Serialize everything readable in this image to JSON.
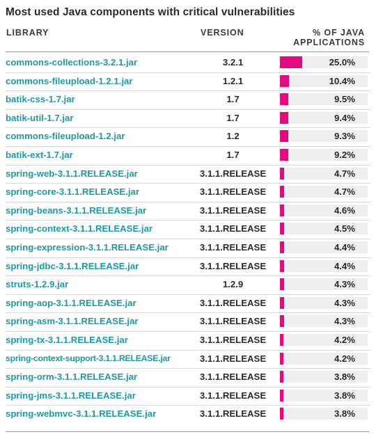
{
  "chart_data": {
    "type": "table",
    "title": "Most used Java components with critical vulnerabilities",
    "columns": [
      "LIBRARY",
      "VERSION",
      "% OF JAVA APPLICATIONS"
    ],
    "bar_color": "#e5097f",
    "library_color": "#1a9aa6",
    "rows": [
      {
        "library": "commons-collections-3.2.1.jar",
        "version": "3.2.1",
        "value": 25.0,
        "label": "25.0%"
      },
      {
        "library": "commons-fileupload-1.2.1.jar",
        "version": "1.2.1",
        "value": 10.4,
        "label": "10.4%"
      },
      {
        "library": "batik-css-1.7.jar",
        "version": "1.7",
        "value": 9.5,
        "label": "9.5%"
      },
      {
        "library": "batik-util-1.7.jar",
        "version": "1.7",
        "value": 9.4,
        "label": "9.4%"
      },
      {
        "library": "commons-fileupload-1.2.jar",
        "version": "1.2",
        "value": 9.3,
        "label": "9.3%"
      },
      {
        "library": "batik-ext-1.7.jar",
        "version": "1.7",
        "value": 9.2,
        "label": "9.2%"
      },
      {
        "library": "spring-web-3.1.1.RELEASE.jar",
        "version": "3.1.1.RELEASE",
        "value": 4.7,
        "label": "4.7%"
      },
      {
        "library": "spring-core-3.1.1.RELEASE.jar",
        "version": "3.1.1.RELEASE",
        "value": 4.7,
        "label": "4.7%"
      },
      {
        "library": "spring-beans-3.1.1.RELEASE.jar",
        "version": "3.1.1.RELEASE",
        "value": 4.6,
        "label": "4.6%"
      },
      {
        "library": "spring-context-3.1.1.RELEASE.jar",
        "version": "3.1.1.RELEASE",
        "value": 4.5,
        "label": "4.5%"
      },
      {
        "library": "spring-expression-3.1.1.RELEASE.jar",
        "version": "3.1.1.RELEASE",
        "value": 4.4,
        "label": "4.4%"
      },
      {
        "library": "spring-jdbc-3.1.1.RELEASE.jar",
        "version": "3.1.1.RELEASE",
        "value": 4.4,
        "label": "4.4%"
      },
      {
        "library": "struts-1.2.9.jar",
        "version": "1.2.9",
        "value": 4.3,
        "label": "4.3%"
      },
      {
        "library": "spring-aop-3.1.1.RELEASE.jar",
        "version": "3.1.1.RELEASE",
        "value": 4.3,
        "label": "4.3%"
      },
      {
        "library": "spring-asm-3.1.1.RELEASE.jar",
        "version": "3.1.1.RELEASE",
        "value": 4.3,
        "label": "4.3%"
      },
      {
        "library": "spring-tx-3.1.1.RELEASE.jar",
        "version": "3.1.1.RELEASE",
        "value": 4.2,
        "label": "4.2%"
      },
      {
        "library": "spring-context-support-3.1.1.RELEASE.jar",
        "version": "3.1.1.RELEASE",
        "value": 4.2,
        "label": "4.2%"
      },
      {
        "library": "spring-orm-3.1.1.RELEASE.jar",
        "version": "3.1.1.RELEASE",
        "value": 3.8,
        "label": "3.8%"
      },
      {
        "library": "spring-jms-3.1.1.RELEASE.jar",
        "version": "3.1.1.RELEASE",
        "value": 3.8,
        "label": "3.8%"
      },
      {
        "library": "spring-webmvc-3.1.1.RELEASE.jar",
        "version": "3.1.1.RELEASE",
        "value": 3.8,
        "label": "3.8%"
      }
    ]
  },
  "headers": {
    "library": "LIBRARY",
    "version": "VERSION",
    "pct_line1": "% OF JAVA",
    "pct_line2": "APPLICATIONS"
  }
}
